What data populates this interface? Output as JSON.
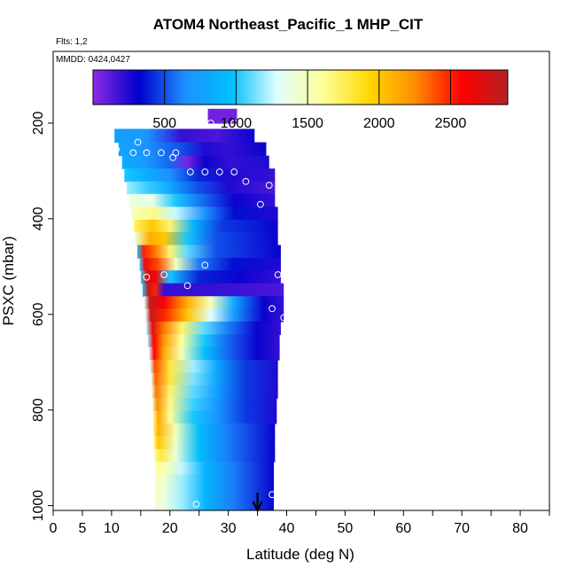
{
  "chart_data": {
    "type": "heatmap",
    "title": "ATOM4 Northeast_Pacific_1 MHP_CIT",
    "flights_label": "Flts: 1,2",
    "dates_label": "MMDD: 0424,0427",
    "xlabel": "Latitude (deg N)",
    "ylabel": "PSXC (mbar)",
    "xlim": [
      0,
      85
    ],
    "ylim": [
      1010,
      50
    ],
    "x_ticks": [
      0,
      5,
      10,
      20,
      30,
      40,
      50,
      60,
      70,
      80
    ],
    "x_minor_ticks": [
      15,
      25,
      35,
      45,
      55,
      65,
      75,
      85
    ],
    "y_ticks": [
      200,
      400,
      600,
      800,
      1000
    ],
    "colorbar": {
      "min": 0,
      "max": 2900,
      "ticks": [
        500,
        1000,
        1500,
        2000,
        2500
      ],
      "colors": [
        "#8a2be2",
        "#0000cd",
        "#1e90ff",
        "#00bfff",
        "#e0ffff",
        "#ffff99",
        "#ffd700",
        "#ff8c00",
        "#ff0000",
        "#b22222"
      ]
    },
    "rows": [
      {
        "p0": 170,
        "p1": 200,
        "x0": 26.5,
        "x1": 31.5,
        "v": [
          [
            26.5,
            60
          ],
          [
            31.5,
            60
          ]
        ]
      },
      {
        "p0": 212,
        "p1": 240,
        "x0": 10.5,
        "x1": 34.5,
        "v": [
          [
            10.5,
            750
          ],
          [
            16,
            700
          ],
          [
            22,
            200
          ],
          [
            28,
            150
          ],
          [
            34.5,
            300
          ]
        ]
      },
      {
        "p0": 240,
        "p1": 268,
        "x0": 11.2,
        "x1": 36.5,
        "v": [
          [
            11.2,
            800
          ],
          [
            16,
            650
          ],
          [
            22,
            500
          ],
          [
            26,
            250
          ],
          [
            30,
            200
          ],
          [
            36.5,
            300
          ]
        ]
      },
      {
        "p0": 268,
        "p1": 295,
        "x0": 11.8,
        "x1": 37.0,
        "v": [
          [
            11.8,
            850
          ],
          [
            16,
            700
          ],
          [
            20,
            550
          ],
          [
            23,
            50
          ],
          [
            26,
            300
          ],
          [
            30,
            200
          ],
          [
            37,
            250
          ]
        ]
      },
      {
        "p0": 295,
        "p1": 322,
        "x0": 12.2,
        "x1": 38.0,
        "v": [
          [
            12.2,
            1000
          ],
          [
            16,
            850
          ],
          [
            20,
            650
          ],
          [
            25,
            400
          ],
          [
            30,
            250
          ],
          [
            38,
            200
          ]
        ]
      },
      {
        "p0": 322,
        "p1": 348,
        "x0": 12.6,
        "x1": 38.0,
        "v": [
          [
            12.6,
            1200
          ],
          [
            16,
            1050
          ],
          [
            20,
            800
          ],
          [
            25,
            500
          ],
          [
            30,
            250
          ],
          [
            38,
            150
          ]
        ]
      },
      {
        "p0": 348,
        "p1": 375,
        "x0": 13.0,
        "x1": 38.0,
        "v": [
          [
            13,
            1400
          ],
          [
            17,
            1350
          ],
          [
            21,
            1000
          ],
          [
            26,
            550
          ],
          [
            31,
            300
          ],
          [
            38,
            200
          ]
        ]
      },
      {
        "p0": 375,
        "p1": 402,
        "x0": 13.4,
        "x1": 38.5,
        "v": [
          [
            13.4,
            1500
          ],
          [
            17,
            1650
          ],
          [
            21,
            1250
          ],
          [
            26,
            650
          ],
          [
            31,
            350
          ],
          [
            38.5,
            250
          ]
        ]
      },
      {
        "p0": 402,
        "p1": 428,
        "x0": 13.8,
        "x1": 38.5,
        "v": [
          [
            13.8,
            1700
          ],
          [
            17,
            2000
          ],
          [
            20,
            1700
          ],
          [
            24,
            900
          ],
          [
            29,
            450
          ],
          [
            38.5,
            300
          ]
        ]
      },
      {
        "p0": 428,
        "p1": 455,
        "x0": 14.0,
        "x1": 38.5,
        "v": [
          [
            14,
            1400
          ],
          [
            16.5,
            2100
          ],
          [
            19,
            2000
          ],
          [
            23,
            1000
          ],
          [
            28,
            500
          ],
          [
            38.5,
            300
          ]
        ]
      },
      {
        "p0": 455,
        "p1": 482,
        "x0": 14.4,
        "x1": 39.0,
        "v": [
          [
            14.4,
            1000
          ],
          [
            15.5,
            2500
          ],
          [
            17.5,
            2300
          ],
          [
            20,
            1700
          ],
          [
            23,
            1100
          ],
          [
            28,
            500
          ],
          [
            39,
            300
          ]
        ]
      },
      {
        "p0": 482,
        "p1": 508,
        "x0": 14.8,
        "x1": 39.0,
        "v": [
          [
            14.8,
            1050
          ],
          [
            15.7,
            2650
          ],
          [
            18,
            2400
          ],
          [
            21,
            1500
          ],
          [
            25,
            600
          ],
          [
            31,
            350
          ],
          [
            39,
            250
          ]
        ]
      },
      {
        "p0": 508,
        "p1": 535,
        "x0": 15.0,
        "x1": 39.0,
        "v": [
          [
            15,
            1050
          ],
          [
            16,
            2800
          ],
          [
            17.5,
            2600
          ],
          [
            20,
            1000
          ],
          [
            25,
            400
          ],
          [
            32,
            300
          ],
          [
            39,
            200
          ]
        ]
      },
      {
        "p0": 535,
        "p1": 562,
        "x0": 15.3,
        "x1": 39.5,
        "v": [
          [
            15.3,
            1000
          ],
          [
            16.3,
            2800
          ],
          [
            17.5,
            2500
          ],
          [
            19,
            200
          ],
          [
            27,
            200
          ],
          [
            39.5,
            150
          ]
        ]
      },
      {
        "p0": 562,
        "p1": 588,
        "x0": 15.6,
        "x1": 39.5,
        "v": [
          [
            15.6,
            1300
          ],
          [
            16.5,
            2850
          ],
          [
            19,
            2600
          ],
          [
            23,
            2100
          ],
          [
            27,
            1500
          ],
          [
            31,
            800
          ],
          [
            36,
            300
          ],
          [
            39.5,
            200
          ]
        ]
      },
      {
        "p0": 588,
        "p1": 615,
        "x0": 15.8,
        "x1": 39.5,
        "v": [
          [
            15.8,
            1300
          ],
          [
            16.7,
            2800
          ],
          [
            19,
            2500
          ],
          [
            23,
            2000
          ],
          [
            27,
            1300
          ],
          [
            31,
            700
          ],
          [
            36,
            300
          ],
          [
            39.5,
            200
          ]
        ]
      },
      {
        "p0": 615,
        "p1": 642,
        "x0": 16.0,
        "x1": 39.0,
        "v": [
          [
            16,
            1200
          ],
          [
            17,
            2700
          ],
          [
            19,
            2300
          ],
          [
            22,
            1700
          ],
          [
            26,
            1100
          ],
          [
            30,
            600
          ],
          [
            35,
            300
          ],
          [
            39,
            200
          ]
        ]
      },
      {
        "p0": 642,
        "p1": 668,
        "x0": 16.2,
        "x1": 38.8,
        "v": [
          [
            16.2,
            1200
          ],
          [
            17.2,
            2600
          ],
          [
            19,
            2200
          ],
          [
            22,
            1600
          ],
          [
            26,
            1000
          ],
          [
            30,
            550
          ],
          [
            35,
            300
          ],
          [
            38.8,
            200
          ]
        ]
      },
      {
        "p0": 668,
        "p1": 695,
        "x0": 16.4,
        "x1": 38.8,
        "v": [
          [
            16.4,
            1300
          ],
          [
            17.3,
            2600
          ],
          [
            19,
            2100
          ],
          [
            22,
            1500
          ],
          [
            26,
            950
          ],
          [
            30,
            550
          ],
          [
            35,
            300
          ],
          [
            38.8,
            200
          ]
        ]
      },
      {
        "p0": 695,
        "p1": 722,
        "x0": 16.6,
        "x1": 38.5,
        "v": [
          [
            16.6,
            1300
          ],
          [
            17.4,
            2400
          ],
          [
            20,
            1800
          ],
          [
            24,
            1200
          ],
          [
            28,
            800
          ],
          [
            33,
            450
          ],
          [
            38.5,
            250
          ]
        ]
      },
      {
        "p0": 722,
        "p1": 748,
        "x0": 16.8,
        "x1": 38.5,
        "v": [
          [
            16.8,
            1300
          ],
          [
            17.5,
            2350
          ],
          [
            20,
            1800
          ],
          [
            24,
            1150
          ],
          [
            28,
            800
          ],
          [
            33,
            450
          ],
          [
            38.5,
            250
          ]
        ]
      },
      {
        "p0": 748,
        "p1": 775,
        "x0": 16.9,
        "x1": 38.5,
        "v": [
          [
            16.9,
            1400
          ],
          [
            17.6,
            2300
          ],
          [
            20,
            1700
          ],
          [
            24,
            1100
          ],
          [
            28,
            750
          ],
          [
            33,
            450
          ],
          [
            38.5,
            250
          ]
        ]
      },
      {
        "p0": 775,
        "p1": 802,
        "x0": 17.0,
        "x1": 38.3,
        "v": [
          [
            17,
            1400
          ],
          [
            17.8,
            2250
          ],
          [
            20,
            1650
          ],
          [
            24,
            1050
          ],
          [
            28,
            700
          ],
          [
            33,
            450
          ],
          [
            38.3,
            250
          ]
        ]
      },
      {
        "p0": 802,
        "p1": 828,
        "x0": 17.1,
        "x1": 38.3,
        "v": [
          [
            17.1,
            1600
          ],
          [
            18,
            2150
          ],
          [
            20,
            1600
          ],
          [
            24,
            1000
          ],
          [
            28,
            700
          ],
          [
            33,
            450
          ],
          [
            38.3,
            250
          ]
        ]
      },
      {
        "p0": 828,
        "p1": 855,
        "x0": 17.2,
        "x1": 38.0,
        "v": [
          [
            17.2,
            1700
          ],
          [
            18,
            2100
          ],
          [
            21,
            1500
          ],
          [
            25,
            950
          ],
          [
            30,
            600
          ],
          [
            38,
            300
          ]
        ]
      },
      {
        "p0": 855,
        "p1": 882,
        "x0": 17.3,
        "x1": 38.0,
        "v": [
          [
            17.3,
            1700
          ],
          [
            18,
            2000
          ],
          [
            21,
            1450
          ],
          [
            25,
            950
          ],
          [
            30,
            600
          ],
          [
            38,
            300
          ]
        ]
      },
      {
        "p0": 882,
        "p1": 908,
        "x0": 17.4,
        "x1": 38.0,
        "v": [
          [
            17.4,
            1650
          ],
          [
            18.5,
            1800
          ],
          [
            21,
            1400
          ],
          [
            25,
            950
          ],
          [
            30,
            600
          ],
          [
            38,
            300
          ]
        ]
      },
      {
        "p0": 908,
        "p1": 935,
        "x0": 17.5,
        "x1": 37.8,
        "v": [
          [
            17.5,
            1600
          ],
          [
            19,
            1550
          ],
          [
            22,
            1250
          ],
          [
            26,
            900
          ],
          [
            31,
            600
          ],
          [
            37.8,
            300
          ]
        ]
      },
      {
        "p0": 935,
        "p1": 962,
        "x0": 17.5,
        "x1": 37.8,
        "v": [
          [
            17.5,
            1500
          ],
          [
            19,
            1450
          ],
          [
            22,
            1200
          ],
          [
            26,
            900
          ],
          [
            31,
            600
          ],
          [
            37.8,
            300
          ]
        ]
      },
      {
        "p0": 962,
        "p1": 988,
        "x0": 17.5,
        "x1": 37.8,
        "v": [
          [
            17.5,
            1500
          ],
          [
            19,
            1400
          ],
          [
            22,
            1200
          ],
          [
            26,
            900
          ],
          [
            31,
            600
          ],
          [
            37.8,
            300
          ]
        ]
      },
      {
        "p0": 988,
        "p1": 1008,
        "x0": 17.5,
        "x1": 37.8,
        "v": [
          [
            17.5,
            1450
          ],
          [
            19,
            1400
          ],
          [
            22,
            1200
          ],
          [
            26,
            900
          ],
          [
            31,
            600
          ],
          [
            37.8,
            300
          ]
        ]
      }
    ],
    "points": [
      {
        "lat": 27.0,
        "p": 200
      },
      {
        "lat": 31.0,
        "p": 200
      },
      {
        "lat": 14.5,
        "p": 240
      },
      {
        "lat": 10.8,
        "p": 255
      },
      {
        "lat": 13.7,
        "p": 262
      },
      {
        "lat": 16.0,
        "p": 262
      },
      {
        "lat": 18.5,
        "p": 262
      },
      {
        "lat": 21.0,
        "p": 262
      },
      {
        "lat": 20.5,
        "p": 272
      },
      {
        "lat": 23.5,
        "p": 302
      },
      {
        "lat": 26.0,
        "p": 302
      },
      {
        "lat": 28.5,
        "p": 302
      },
      {
        "lat": 31.0,
        "p": 302
      },
      {
        "lat": 33.0,
        "p": 322
      },
      {
        "lat": 37.0,
        "p": 330
      },
      {
        "lat": 39.0,
        "p": 330
      },
      {
        "lat": 35.5,
        "p": 370
      },
      {
        "lat": 26.0,
        "p": 497
      },
      {
        "lat": 38.5,
        "p": 517
      },
      {
        "lat": 19.0,
        "p": 517
      },
      {
        "lat": 16.0,
        "p": 522
      },
      {
        "lat": 23.0,
        "p": 540
      },
      {
        "lat": 37.5,
        "p": 588
      },
      {
        "lat": 39.5,
        "p": 607
      },
      {
        "lat": 37.5,
        "p": 977
      },
      {
        "lat": 24.5,
        "p": 997
      }
    ],
    "marker_arrow_lat": 35
  }
}
